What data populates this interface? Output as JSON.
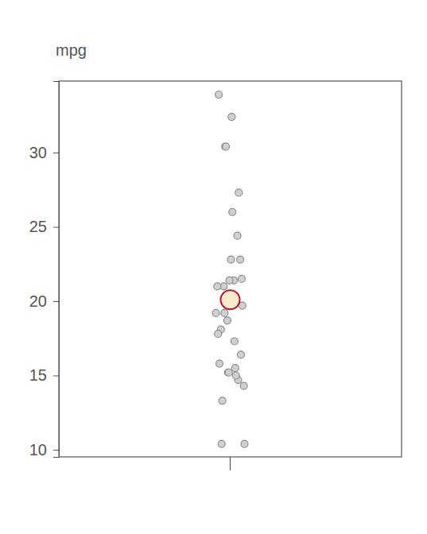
{
  "chart_data": {
    "type": "strip",
    "y_label": "mpg",
    "series": [
      {
        "values": [
          21,
          21,
          22.8,
          21.4,
          18.7,
          18.1,
          14.3,
          24.4,
          22.8,
          19.2,
          17.8,
          16.4,
          17.3,
          15.2,
          10.4,
          10.4,
          14.7,
          32.4,
          30.4,
          33.9,
          21.5,
          15.5,
          15.2,
          13.3,
          19.2,
          27.3,
          26,
          30.4,
          15.8,
          19.7,
          15,
          21.4
        ],
        "color": "#d0d0d0",
        "marker": "circle"
      },
      {
        "values": [
          20.09
        ],
        "color": "#fde9cc",
        "marker": "circle"
      }
    ],
    "ylim": [
      9.52,
      34.81
    ],
    "yticks": [
      10,
      15,
      20,
      25,
      30
    ]
  }
}
